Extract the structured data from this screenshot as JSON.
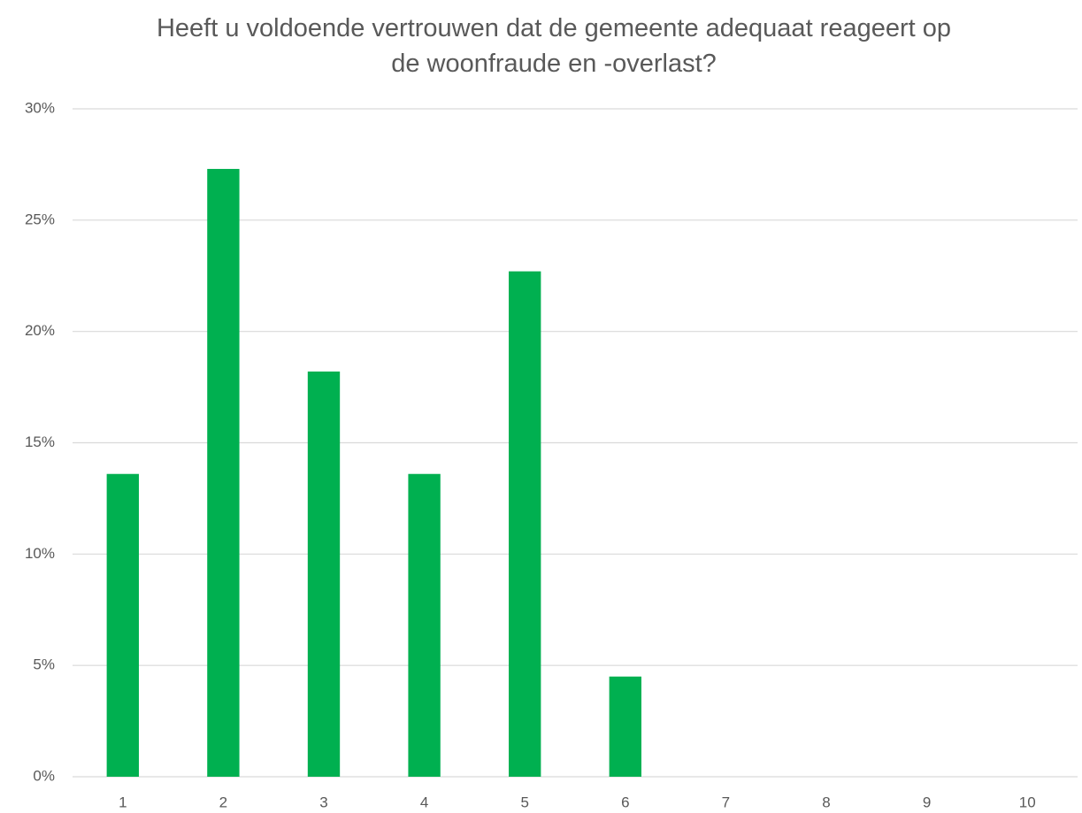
{
  "chart_data": {
    "type": "bar",
    "title": "Heeft u voldoende vertrouwen dat de gemeente adequaat reageert op de woonfraude en -overlast?",
    "categories": [
      "1",
      "2",
      "3",
      "4",
      "5",
      "6",
      "7",
      "8",
      "9",
      "10"
    ],
    "values": [
      13.6,
      27.3,
      18.2,
      13.6,
      22.7,
      4.5,
      0,
      0,
      0,
      0
    ],
    "color": "#00b050",
    "ylim": [
      0,
      30
    ],
    "yticks": [
      {
        "value": 0,
        "label": "0%"
      },
      {
        "value": 5,
        "label": "5%"
      },
      {
        "value": 10,
        "label": "10%"
      },
      {
        "value": 15,
        "label": "15%"
      },
      {
        "value": 20,
        "label": "20%"
      },
      {
        "value": 25,
        "label": "25%"
      },
      {
        "value": 30,
        "label": "30%"
      }
    ],
    "grid": true
  }
}
